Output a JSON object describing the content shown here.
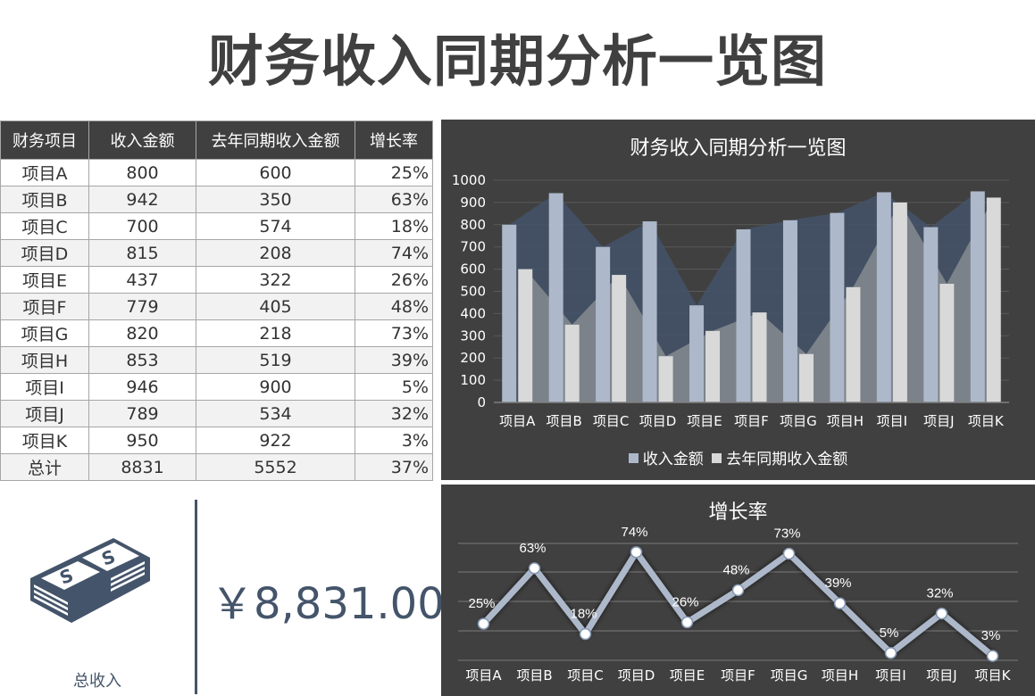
{
  "page": {
    "title": "财务收入同期分析一览图"
  },
  "table": {
    "headers": [
      "财务项目",
      "收入金额",
      "去年同期收入金额",
      "增长率"
    ],
    "rows": [
      [
        "项目A",
        "800",
        "600",
        "25%"
      ],
      [
        "项目B",
        "942",
        "350",
        "63%"
      ],
      [
        "项目C",
        "700",
        "574",
        "18%"
      ],
      [
        "项目D",
        "815",
        "208",
        "74%"
      ],
      [
        "项目E",
        "437",
        "322",
        "26%"
      ],
      [
        "项目F",
        "779",
        "405",
        "48%"
      ],
      [
        "项目G",
        "820",
        "218",
        "73%"
      ],
      [
        "项目H",
        "853",
        "519",
        "39%"
      ],
      [
        "项目I",
        "946",
        "900",
        "5%"
      ],
      [
        "项目J",
        "789",
        "534",
        "32%"
      ],
      [
        "项目K",
        "950",
        "922",
        "3%"
      ]
    ],
    "total": [
      "总计",
      "8831",
      "5552",
      "37%"
    ]
  },
  "summary": {
    "icon": "money-stack-icon",
    "label": "总收入",
    "value": "￥8,831.00",
    "accent": "#44546a"
  },
  "colors": {
    "panel_bg": "#404040",
    "revenue_bar": "#adb9ca",
    "prior_bar": "#d9d9d9",
    "revenue_area": "#44546a",
    "prior_area": "#7f858c",
    "line": "#adb9ca",
    "gridline": "#595959"
  },
  "chart_data": [
    {
      "type": "bar",
      "title": "财务收入同期分析一览图",
      "categories": [
        "项目A",
        "项目B",
        "项目C",
        "项目D",
        "项目E",
        "项目F",
        "项目G",
        "项目H",
        "项目I",
        "项目J",
        "项目K"
      ],
      "series": [
        {
          "name": "收入金额",
          "values": [
            800,
            942,
            700,
            815,
            437,
            779,
            820,
            853,
            946,
            789,
            950
          ],
          "render": "bar+area"
        },
        {
          "name": "去年同期收入金额",
          "values": [
            600,
            350,
            574,
            208,
            322,
            405,
            218,
            519,
            900,
            534,
            922
          ],
          "render": "bar+area"
        }
      ],
      "xlabel": "",
      "ylabel": "",
      "ylim": [
        0,
        1000
      ],
      "yticks": [
        0,
        100,
        200,
        300,
        400,
        500,
        600,
        700,
        800,
        900,
        1000
      ],
      "grid": true,
      "legend": {
        "position": "bottom",
        "entries": [
          "收入金额",
          "去年同期收入金额"
        ]
      }
    },
    {
      "type": "line",
      "title": "增长率",
      "categories": [
        "项目A",
        "项目B",
        "项目C",
        "项目D",
        "项目E",
        "项目F",
        "项目G",
        "项目H",
        "项目I",
        "项目J",
        "项目K"
      ],
      "series": [
        {
          "name": "增长率",
          "values": [
            25,
            63,
            18,
            74,
            26,
            48,
            73,
            39,
            5,
            32,
            3
          ],
          "labels": [
            "25%",
            "63%",
            "18%",
            "74%",
            "26%",
            "48%",
            "73%",
            "39%",
            "5%",
            "32%",
            "3%"
          ]
        }
      ],
      "ylim": [
        0,
        80
      ],
      "grid": true,
      "legend": null,
      "data_labels": true
    }
  ]
}
